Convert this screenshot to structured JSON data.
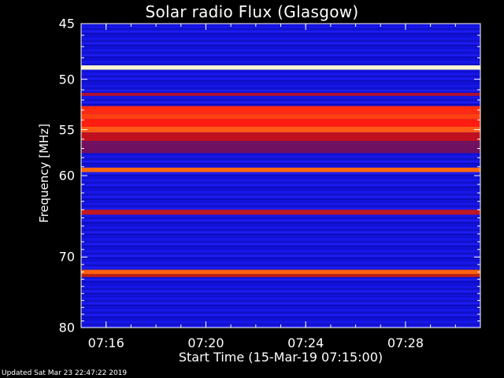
{
  "chart_data": {
    "type": "heatmap",
    "title": "Solar radio Flux (Glasgow)",
    "ylabel": "Frequency [MHz]",
    "xlabel": "Start Time (15-Mar-19 07:15:00)",
    "y_axis": {
      "scale": "log",
      "ylim": [
        45,
        80
      ],
      "ticks": [
        45,
        50,
        55,
        60,
        70,
        80
      ]
    },
    "x_axis": {
      "xlim": [
        "07:15:00",
        "07:31:00"
      ],
      "tick_labels": [
        "07:16",
        "07:20",
        "07:24",
        "07:28"
      ]
    },
    "intensity_bands": [
      {
        "freq_range": [
          48.7,
          49.1
        ],
        "level": "saturated",
        "color": "#fff7d0"
      },
      {
        "freq_range": [
          51.3,
          51.6
        ],
        "level": "medium",
        "color": "#b01030"
      },
      {
        "freq_range": [
          52.6,
          53.4
        ],
        "level": "high",
        "color": "#ff2a10"
      },
      {
        "freq_range": [
          53.4,
          53.9
        ],
        "level": "high",
        "color": "#ff4010"
      },
      {
        "freq_range": [
          53.9,
          54.7
        ],
        "level": "high",
        "color": "#ff1c10"
      },
      {
        "freq_range": [
          54.7,
          55.3
        ],
        "level": "very-high",
        "color": "#ff5a18"
      },
      {
        "freq_range": [
          55.3,
          56.2
        ],
        "level": "medium",
        "color": "#c01020"
      },
      {
        "freq_range": [
          56.2,
          57.5
        ],
        "level": "low",
        "color": "#701060"
      },
      {
        "freq_range": [
          59.1,
          59.6
        ],
        "level": "very-high",
        "color": "#ff6a10"
      },
      {
        "freq_range": [
          64.0,
          64.6
        ],
        "level": "medium",
        "color": "#c01820"
      },
      {
        "freq_range": [
          71.7,
          72.3
        ],
        "level": "very-high",
        "color": "#ff6010"
      },
      {
        "freq_range": [
          72.3,
          72.7
        ],
        "level": "medium",
        "color": "#c02010"
      }
    ],
    "background_color": "#1414e0"
  },
  "footer": {
    "updated": "Updated Sat Mar 23 22:47:22 2019"
  }
}
